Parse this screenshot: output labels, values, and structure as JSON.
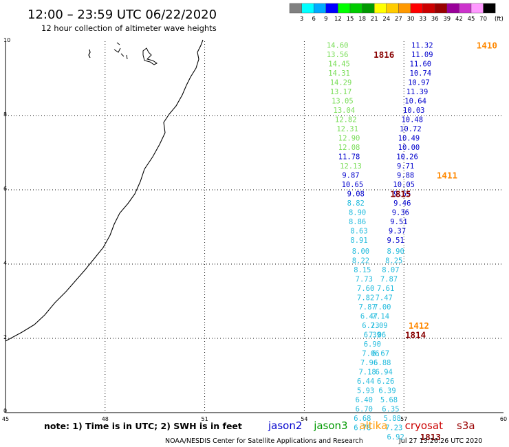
{
  "header": {
    "title": "12:00 – 23:59 UTC 06/22/2020",
    "subtitle": "12 hour collection of altimeter wave heights"
  },
  "colorbar": {
    "unit": "(ft)",
    "labels": [
      "3",
      "6",
      "9",
      "12",
      "15",
      "18",
      "21",
      "24",
      "27",
      "30",
      "33",
      "36",
      "39",
      "42",
      "45",
      "70"
    ],
    "colors": [
      "#808080",
      "#00ffff",
      "#00aaff",
      "#0000ff",
      "#00ff00",
      "#00cc00",
      "#009900",
      "#ffff00",
      "#ffcc00",
      "#ff9900",
      "#ff0000",
      "#cc0000",
      "#990000",
      "#990099",
      "#cc33cc",
      "#ff99ff",
      "#000000"
    ]
  },
  "map": {
    "y_ticks": [
      "0",
      "2",
      "4",
      "6",
      "8",
      "10"
    ],
    "x_ticks": [
      "45",
      "48",
      "51",
      "54",
      "57",
      "60"
    ],
    "lat_range": [
      0,
      10
    ],
    "lon_range": [
      45,
      60
    ]
  },
  "tracks": {
    "left_column": [
      {
        "v": "14.60",
        "lon": 55.0,
        "lat": 9.9,
        "c": "#77dd55"
      },
      {
        "v": "13.56",
        "lon": 55.0,
        "lat": 9.65,
        "c": "#77dd55"
      },
      {
        "v": "14.45",
        "lon": 55.05,
        "lat": 9.4,
        "c": "#77dd55"
      },
      {
        "v": "14.31",
        "lon": 55.05,
        "lat": 9.15,
        "c": "#77dd55"
      },
      {
        "v": "14.29",
        "lon": 55.1,
        "lat": 8.9,
        "c": "#77dd55"
      },
      {
        "v": "13.17",
        "lon": 55.1,
        "lat": 8.65,
        "c": "#77dd55"
      },
      {
        "v": "13.05",
        "lon": 55.15,
        "lat": 8.4,
        "c": "#77dd55"
      },
      {
        "v": "13.04",
        "lon": 55.2,
        "lat": 8.15,
        "c": "#77dd55"
      },
      {
        "v": "12.82",
        "lon": 55.25,
        "lat": 7.9,
        "c": "#77dd55"
      },
      {
        "v": "12.31",
        "lon": 55.3,
        "lat": 7.65,
        "c": "#77dd55"
      },
      {
        "v": "12.90",
        "lon": 55.35,
        "lat": 7.4,
        "c": "#77dd55"
      },
      {
        "v": "12.08",
        "lon": 55.35,
        "lat": 7.15,
        "c": "#77dd55"
      },
      {
        "v": "11.78",
        "lon": 55.35,
        "lat": 6.9,
        "c": "#0000cc"
      },
      {
        "v": "12.13",
        "lon": 55.4,
        "lat": 6.65,
        "c": "#77dd55"
      },
      {
        "v": "9.87",
        "lon": 55.4,
        "lat": 6.4,
        "c": "#0000cc"
      },
      {
        "v": "10.65",
        "lon": 55.45,
        "lat": 6.15,
        "c": "#0000cc"
      },
      {
        "v": "9.08",
        "lon": 55.55,
        "lat": 5.9,
        "c": "#0000cc"
      },
      {
        "v": "8.82",
        "lon": 55.55,
        "lat": 5.65,
        "c": "#22bbdd"
      },
      {
        "v": "8.90",
        "lon": 55.6,
        "lat": 5.4,
        "c": "#22bbdd"
      },
      {
        "v": "8.86",
        "lon": 55.6,
        "lat": 5.15,
        "c": "#22bbdd"
      },
      {
        "v": "8.63",
        "lon": 55.65,
        "lat": 4.9,
        "c": "#22bbdd"
      },
      {
        "v": "8.91",
        "lon": 55.65,
        "lat": 4.65,
        "c": "#22bbdd"
      },
      {
        "v": "8.00",
        "lon": 55.7,
        "lat": 4.35,
        "c": "#22bbdd"
      },
      {
        "v": "8.22",
        "lon": 55.7,
        "lat": 4.1,
        "c": "#22bbdd"
      },
      {
        "v": "8.15",
        "lon": 55.75,
        "lat": 3.85,
        "c": "#22bbdd"
      },
      {
        "v": "7.73",
        "lon": 55.8,
        "lat": 3.6,
        "c": "#22bbdd"
      },
      {
        "v": "7.60",
        "lon": 55.85,
        "lat": 3.35,
        "c": "#22bbdd"
      },
      {
        "v": "7.82",
        "lon": 55.85,
        "lat": 3.1,
        "c": "#22bbdd"
      },
      {
        "v": "7.87",
        "lon": 55.9,
        "lat": 2.85,
        "c": "#22bbdd"
      },
      {
        "v": "6.47",
        "lon": 55.95,
        "lat": 2.6,
        "c": "#22bbdd"
      },
      {
        "v": "6.23",
        "lon": 56.0,
        "lat": 2.35,
        "c": "#22bbdd"
      },
      {
        "v": "6.39",
        "lon": 56.05,
        "lat": 2.1,
        "c": "#22bbdd"
      },
      {
        "v": "6.90",
        "lon": 56.05,
        "lat": 1.85,
        "c": "#22bbdd"
      },
      {
        "v": "7.06",
        "lon": 56.0,
        "lat": 1.6,
        "c": "#22bbdd"
      },
      {
        "v": "7.96",
        "lon": 55.95,
        "lat": 1.35,
        "c": "#22bbdd"
      },
      {
        "v": "7.18",
        "lon": 55.9,
        "lat": 1.1,
        "c": "#22bbdd"
      },
      {
        "v": "6.44",
        "lon": 55.85,
        "lat": 0.85,
        "c": "#22bbdd"
      },
      {
        "v": "5.93",
        "lon": 55.85,
        "lat": 0.6,
        "c": "#22bbdd"
      },
      {
        "v": "6.40",
        "lon": 55.8,
        "lat": 0.35,
        "c": "#22bbdd"
      },
      {
        "v": "6.70",
        "lon": 55.8,
        "lat": 0.1,
        "c": "#22bbdd"
      },
      {
        "v": "6.68",
        "lon": 55.75,
        "lat": -0.15,
        "c": "#22bbdd"
      },
      {
        "v": "6.78",
        "lon": 55.75,
        "lat": -0.4,
        "c": "#22bbdd"
      }
    ],
    "right_column": [
      {
        "v": "11.32",
        "lon": 57.55,
        "lat": 9.9,
        "c": "#0000cc"
      },
      {
        "v": "11.09",
        "lon": 57.55,
        "lat": 9.65,
        "c": "#0000cc"
      },
      {
        "v": "11.60",
        "lon": 57.5,
        "lat": 9.4,
        "c": "#0000cc"
      },
      {
        "v": "10.74",
        "lon": 57.5,
        "lat": 9.15,
        "c": "#0000cc"
      },
      {
        "v": "10.97",
        "lon": 57.45,
        "lat": 8.9,
        "c": "#0000cc"
      },
      {
        "v": "11.39",
        "lon": 57.4,
        "lat": 8.65,
        "c": "#0000cc"
      },
      {
        "v": "10.64",
        "lon": 57.35,
        "lat": 8.4,
        "c": "#0000cc"
      },
      {
        "v": "10.03",
        "lon": 57.3,
        "lat": 8.15,
        "c": "#0000cc"
      },
      {
        "v": "10.48",
        "lon": 57.25,
        "lat": 7.9,
        "c": "#0000cc"
      },
      {
        "v": "10.72",
        "lon": 57.2,
        "lat": 7.65,
        "c": "#0000cc"
      },
      {
        "v": "10.49",
        "lon": 57.15,
        "lat": 7.4,
        "c": "#0000cc"
      },
      {
        "v": "10.00",
        "lon": 57.15,
        "lat": 7.15,
        "c": "#0000cc"
      },
      {
        "v": "10.26",
        "lon": 57.1,
        "lat": 6.9,
        "c": "#0000cc"
      },
      {
        "v": "9.71",
        "lon": 57.05,
        "lat": 6.65,
        "c": "#0000cc"
      },
      {
        "v": "9.88",
        "lon": 57.05,
        "lat": 6.4,
        "c": "#0000cc"
      },
      {
        "v": "10.05",
        "lon": 57.0,
        "lat": 6.15,
        "c": "#0000cc"
      },
      {
        "v": "9.55",
        "lon": 56.95,
        "lat": 5.9,
        "c": "#0000cc"
      },
      {
        "v": "9.46",
        "lon": 56.95,
        "lat": 5.65,
        "c": "#0000cc"
      },
      {
        "v": "9.36",
        "lon": 56.9,
        "lat": 5.4,
        "c": "#0000cc"
      },
      {
        "v": "9.51",
        "lon": 56.85,
        "lat": 5.15,
        "c": "#0000cc"
      },
      {
        "v": "9.37",
        "lon": 56.8,
        "lat": 4.9,
        "c": "#0000cc"
      },
      {
        "v": "9.51",
        "lon": 56.75,
        "lat": 4.65,
        "c": "#0000cc"
      },
      {
        "v": "8.90",
        "lon": 56.75,
        "lat": 4.35,
        "c": "#22bbdd"
      },
      {
        "v": "8.25",
        "lon": 56.7,
        "lat": 4.1,
        "c": "#22bbdd"
      },
      {
        "v": "8.07",
        "lon": 56.6,
        "lat": 3.85,
        "c": "#22bbdd"
      },
      {
        "v": "7.87",
        "lon": 56.55,
        "lat": 3.6,
        "c": "#22bbdd"
      },
      {
        "v": "7.61",
        "lon": 56.45,
        "lat": 3.35,
        "c": "#22bbdd"
      },
      {
        "v": "7.47",
        "lon": 56.4,
        "lat": 3.1,
        "c": "#22bbdd"
      },
      {
        "v": "7.00",
        "lon": 56.35,
        "lat": 2.85,
        "c": "#22bbdd"
      },
      {
        "v": "7.14",
        "lon": 56.3,
        "lat": 2.6,
        "c": "#22bbdd"
      },
      {
        "v": "7.09",
        "lon": 56.25,
        "lat": 2.35,
        "c": "#22bbdd"
      },
      {
        "v": "7.06",
        "lon": 56.2,
        "lat": 2.1,
        "c": "#22bbdd"
      },
      {
        "v": "6.67",
        "lon": 56.3,
        "lat": 1.6,
        "c": "#22bbdd"
      },
      {
        "v": "6.88",
        "lon": 56.35,
        "lat": 1.35,
        "c": "#22bbdd"
      },
      {
        "v": "6.94",
        "lon": 56.4,
        "lat": 1.1,
        "c": "#22bbdd"
      },
      {
        "v": "6.26",
        "lon": 56.45,
        "lat": 0.85,
        "c": "#22bbdd"
      },
      {
        "v": "6.39",
        "lon": 56.5,
        "lat": 0.6,
        "c": "#22bbdd"
      },
      {
        "v": "5.68",
        "lon": 56.55,
        "lat": 0.35,
        "c": "#22bbdd"
      },
      {
        "v": "6.35",
        "lon": 56.6,
        "lat": 0.1,
        "c": "#22bbdd"
      },
      {
        "v": "5.88",
        "lon": 56.65,
        "lat": -0.15,
        "c": "#22bbdd"
      },
      {
        "v": "7.23",
        "lon": 56.7,
        "lat": -0.4,
        "c": "#22bbdd"
      },
      {
        "v": "6.92",
        "lon": 56.75,
        "lat": -0.65,
        "c": "#22bbdd"
      }
    ]
  },
  "pass_labels": [
    {
      "text": "1816",
      "lon": 56.4,
      "lat": 9.65,
      "c": "#880000"
    },
    {
      "text": "1410",
      "lon": 59.5,
      "lat": 9.9,
      "c": "#ff8800"
    },
    {
      "text": "1815",
      "lon": 56.9,
      "lat": 5.9,
      "c": "#880000"
    },
    {
      "text": "1411",
      "lon": 58.3,
      "lat": 6.4,
      "c": "#ff8800"
    },
    {
      "text": "1412",
      "lon": 57.45,
      "lat": 2.35,
      "c": "#ff8800"
    },
    {
      "text": "1814",
      "lon": 57.35,
      "lat": 2.1,
      "c": "#880000"
    },
    {
      "text": "1813",
      "lon": 57.8,
      "lat": -0.65,
      "c": "#880000"
    }
  ],
  "footer": {
    "note": "note:  1) Time is in UTC;  2) SWH is in feet",
    "missions": [
      {
        "name": "jason2",
        "color": "#0000cc"
      },
      {
        "name": "jason3",
        "color": "#009900"
      },
      {
        "name": "altika",
        "color": "#ff9900"
      },
      {
        "name": "cryosat",
        "color": "#cc0000"
      },
      {
        "name": "s3a",
        "color": "#990000"
      }
    ],
    "credit": "NOAA/NESDIS Center for Satellite Applications and Research",
    "timestamp": "Jul 27 13:26:26 UTC 2020"
  }
}
